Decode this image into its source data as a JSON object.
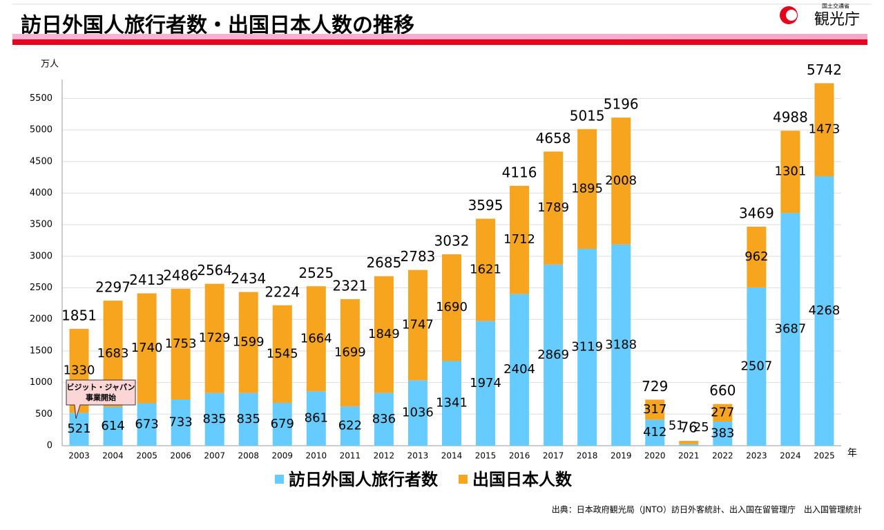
{
  "header": {
    "title": "訪日外国人旅行者数・出国日本人数の推移",
    "logo_org": "国土交通省",
    "logo_name": "観光庁"
  },
  "chart_data": {
    "type": "stacked-bar",
    "y_label": "万人",
    "x_unit": "年",
    "categories": [
      "2003",
      "2004",
      "2005",
      "2006",
      "2007",
      "2008",
      "2009",
      "2010",
      "2011",
      "2012",
      "2013",
      "2014",
      "2015",
      "2016",
      "2017",
      "2018",
      "2019",
      "2020",
      "2021",
      "2022",
      "2023",
      "2024",
      "2025"
    ],
    "series": [
      {
        "name": "訪日外国人旅行者数",
        "color": "#66ccff",
        "values": [
          521,
          614,
          673,
          733,
          835,
          835,
          679,
          861,
          622,
          836,
          1036,
          1341,
          1974,
          2404,
          2869,
          3119,
          3188,
          412,
          25,
          383,
          2507,
          3687,
          4268
        ]
      },
      {
        "name": "出国日本人数",
        "color": "#f7a41e",
        "values": [
          1330,
          1683,
          1740,
          1753,
          1729,
          1599,
          1545,
          1664,
          1699,
          1849,
          1747,
          1690,
          1621,
          1712,
          1789,
          1895,
          2008,
          317,
          51,
          277,
          962,
          1301,
          1473
        ]
      }
    ],
    "totals": [
      1851,
      2297,
      2413,
      2486,
      2564,
      2434,
      2224,
      2525,
      2321,
      2685,
      2783,
      3032,
      3595,
      4116,
      4658,
      5015,
      5196,
      729,
      76,
      660,
      3469,
      4988,
      5742
    ],
    "ylim": [
      0,
      5800
    ],
    "yticks": [
      0,
      500,
      1000,
      1500,
      2000,
      2500,
      3000,
      3500,
      4000,
      4500,
      5000,
      5500
    ],
    "grid": true,
    "annotation": [
      "ビジット・ジャパン",
      "事業開始"
    ]
  },
  "source": "出典：日本政府観光局（JNTO）訪日外客統計、出入国在留管理庁　出入国管理統計"
}
